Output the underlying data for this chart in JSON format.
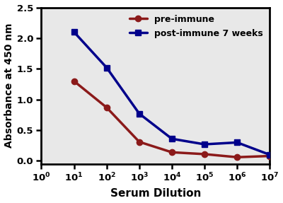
{
  "x_values": [
    10,
    100,
    1000,
    10000,
    100000,
    1000000,
    10000000
  ],
  "pre_immune": [
    1.3,
    0.87,
    0.31,
    0.14,
    0.11,
    0.06,
    0.08
  ],
  "post_immune": [
    2.1,
    1.52,
    0.77,
    0.36,
    0.27,
    0.3,
    0.1
  ],
  "pre_immune_color": "#8B1A1A",
  "post_immune_color": "#00008B",
  "pre_immune_label": "pre-immune",
  "post_immune_label": "post-immune 7 weeks",
  "xlabel": "Serum Dilution",
  "ylabel": "Absorbance at 450 nm",
  "ylim": [
    -0.05,
    2.5
  ],
  "yticks": [
    0.0,
    0.5,
    1.0,
    1.5,
    2.0,
    2.5
  ],
  "linewidth": 2.5,
  "markersize": 6,
  "background_color": "#ffffff",
  "axes_bg_color": "#e8e8e8"
}
